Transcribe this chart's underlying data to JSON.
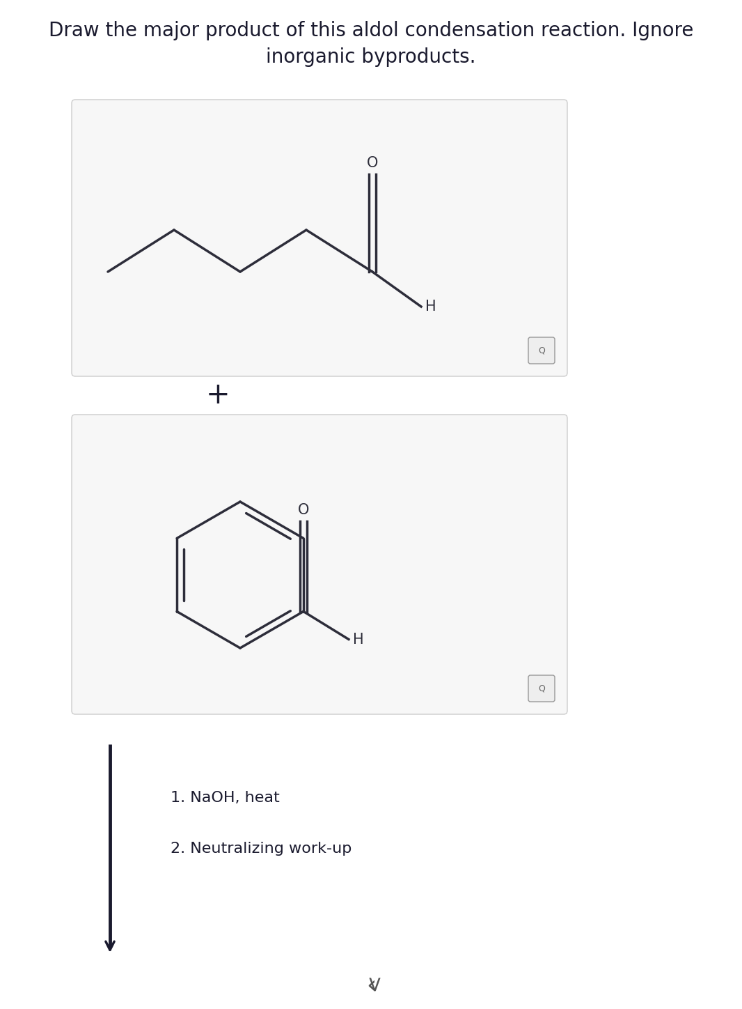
{
  "title_line1": "Draw the major product of this aldol condensation reaction. Ignore",
  "title_line2": "inorganic byproducts.",
  "title_fontsize": 20,
  "title_color": "#1a1a2e",
  "background_color": "#ffffff",
  "box_bg": "#f7f7f7",
  "box_edge": "#cccccc",
  "mol_color": "#2d2d3a",
  "plus_symbol": "+",
  "conditions_line1": "1. NaOH, heat",
  "conditions_line2": "2. Neutralizing work-up",
  "conditions_fontsize": 16,
  "label_fontsize": 14
}
